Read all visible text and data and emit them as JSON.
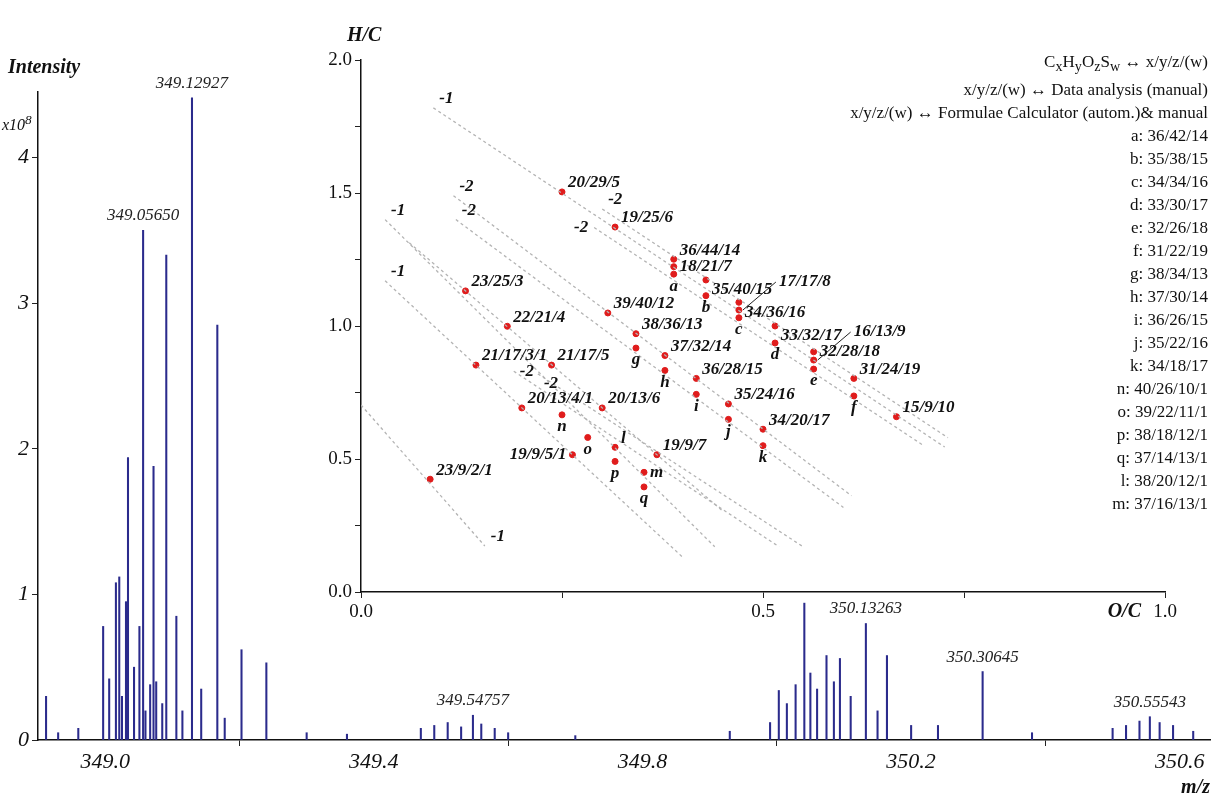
{
  "chart_data": [
    {
      "type": "bar",
      "xlabel": "m/z",
      "ylabel": "Intensity",
      "xlim": [
        348.9,
        350.645
      ],
      "xticks": [
        {
          "value": 349.0,
          "label": "349.0"
        },
        {
          "value": 349.4,
          "label": "349.4"
        },
        {
          "value": 349.8,
          "label": "349.8"
        },
        {
          "value": 350.2,
          "label": "350.2"
        },
        {
          "value": 350.6,
          "label": "350.6"
        }
      ],
      "ylim": [
        0,
        4.45
      ],
      "yticks": [
        0,
        1,
        2,
        3,
        4
      ],
      "grid": false,
      "legend": false,
      "series": [
        {
          "color": "#2b2b8c",
          "x": [
            348.912,
            348.93,
            348.96,
            348.997,
            349.006,
            349.016,
            349.021,
            349.025,
            349.031,
            349.034,
            349.043,
            349.051,
            349.0565,
            349.06,
            349.067,
            349.072,
            349.076,
            349.085,
            349.091,
            349.106,
            349.115,
            349.12927,
            349.143,
            349.167,
            349.178,
            349.203,
            349.24,
            349.3,
            349.36,
            349.47,
            349.49,
            349.51,
            349.53,
            349.54757,
            349.56,
            349.58,
            349.6,
            349.7,
            349.93,
            349.99,
            350.003,
            350.015,
            350.028,
            350.041,
            350.05,
            350.06,
            350.074,
            350.085,
            350.094,
            350.11,
            350.13263,
            350.15,
            350.164,
            350.2,
            350.24,
            350.30645,
            350.38,
            350.5,
            350.52,
            350.54,
            350.55543,
            350.57,
            350.59,
            350.62
          ],
          "values": [
            0.3,
            0.05,
            0.08,
            0.78,
            0.42,
            1.08,
            1.12,
            0.3,
            0.95,
            1.94,
            0.5,
            0.78,
            3.5,
            0.2,
            0.38,
            1.88,
            0.4,
            0.25,
            3.33,
            0.85,
            0.2,
            4.41,
            0.35,
            2.85,
            0.15,
            0.62,
            0.53,
            0.05,
            0.04,
            0.08,
            0.1,
            0.12,
            0.09,
            0.17,
            0.11,
            0.08,
            0.05,
            0.03,
            0.06,
            0.12,
            0.34,
            0.25,
            0.38,
            0.94,
            0.46,
            0.35,
            0.58,
            0.4,
            0.56,
            0.3,
            0.8,
            0.2,
            0.58,
            0.1,
            0.1,
            0.47,
            0.05,
            0.08,
            0.1,
            0.13,
            0.16,
            0.12,
            0.1,
            0.06
          ]
        }
      ],
      "annotations": [
        "x10$^{8}$",
        {
          "text": "349.05650",
          "x": 349.0565,
          "y": 3.5
        },
        {
          "text": "349.12927",
          "x": 349.12927,
          "y": 4.41
        },
        {
          "text": "349.54757",
          "x": 349.54757,
          "y": 0.17
        },
        {
          "text": "350.13263",
          "x": 350.13263,
          "y": 0.8
        },
        {
          "text": "350.30645",
          "x": 350.30645,
          "y": 0.47
        },
        {
          "text": "350.55543",
          "x": 350.55543,
          "y": 0.16
        }
      ]
    },
    {
      "type": "scatter",
      "xlabel": "O/C",
      "ylabel": "H/C",
      "xlim": [
        0,
        1
      ],
      "xticks": [
        {
          "value": 0,
          "label": "0.0"
        },
        {
          "value": 0.25,
          "label": null
        },
        {
          "value": 0.5,
          "label": "0.5"
        },
        {
          "value": 0.75,
          "label": null
        },
        {
          "value": 1,
          "label": "1.0"
        }
      ],
      "ylim": [
        0,
        2
      ],
      "yticks": [
        {
          "value": 0,
          "label": "0.0"
        },
        {
          "value": 0.25,
          "label": null
        },
        {
          "value": 0.5,
          "label": "0.5"
        },
        {
          "value": 0.75,
          "label": null
        },
        {
          "value": 1,
          "label": "1.0"
        },
        {
          "value": 1.25,
          "label": null
        },
        {
          "value": 1.5,
          "label": "1.5"
        },
        {
          "value": 1.75,
          "label": null
        },
        {
          "value": 2,
          "label": "2.0"
        }
      ],
      "grid": false,
      "legend": false,
      "marker": "circle",
      "series": [
        {
          "type": "line",
          "color": "#b4b4b4",
          "line_style": "dashed",
          "marker": "none",
          "x": [
            0.09,
            0.726
          ],
          "values": [
            1.82,
            0.545
          ]
        },
        {
          "type": "line",
          "color": "#b4b4b4",
          "line_style": "dashed",
          "marker": "none",
          "x": [
            0.3,
            0.73
          ],
          "values": [
            1.44,
            0.58
          ]
        },
        {
          "type": "line",
          "color": "#b4b4b4",
          "line_style": "dashed",
          "marker": "none",
          "x": [
            0.29,
            0.7
          ],
          "values": [
            1.37,
            0.55
          ]
        },
        {
          "type": "line",
          "color": "#b4b4b4",
          "line_style": "dashed",
          "marker": "none",
          "x": [
            0.06,
            0.45
          ],
          "values": [
            1.313,
            0.304
          ]
        },
        {
          "type": "line",
          "color": "#b4b4b4",
          "line_style": "dashed",
          "marker": "none",
          "x": [
            0.115,
            0.61
          ],
          "values": [
            1.49,
            0.362
          ]
        },
        {
          "type": "line",
          "color": "#b4b4b4",
          "line_style": "dashed",
          "marker": "none",
          "x": [
            0.118,
            0.6
          ],
          "values": [
            1.4,
            0.318
          ]
        },
        {
          "type": "line",
          "color": "#b4b4b4",
          "line_style": "dashed",
          "marker": "none",
          "x": [
            0.03,
            0.4
          ],
          "values": [
            1.17,
            0.131
          ]
        },
        {
          "type": "line",
          "color": "#b4b4b4",
          "line_style": "dashed",
          "marker": "none",
          "x": [
            0.03,
            0.44
          ],
          "values": [
            1.4,
            0.17
          ]
        },
        {
          "type": "line",
          "color": "#b4b4b4",
          "line_style": "dashed",
          "marker": "none",
          "x": [
            0.19,
            0.52
          ],
          "values": [
            0.83,
            0.17
          ]
        },
        {
          "type": "line",
          "color": "#b4b4b4",
          "line_style": "dashed",
          "marker": "none",
          "x": [
            0.22,
            0.55
          ],
          "values": [
            0.82,
            0.17
          ]
        },
        {
          "type": "line",
          "color": "#b4b4b4",
          "line_style": "dashed",
          "marker": "none",
          "x": [
            0,
            0.154
          ],
          "values": [
            0.703,
            0.173
          ]
        },
        {
          "color": "#e01c1c",
          "x": [
            0.25,
            0.316,
            0.389,
            0.389,
            0.389,
            0.429,
            0.429,
            0.13,
            0.307,
            0.182,
            0.47,
            0.47,
            0.47,
            0.342,
            0.342,
            0.378,
            0.378,
            0.237,
            0.143,
            0.417,
            0.417,
            0.2,
            0.25,
            0.3,
            0.457,
            0.457,
            0.5,
            0.5,
            0.282,
            0.316,
            0.316,
            0.263,
            0.368,
            0.352,
            0.352,
            0.086,
            0.515,
            0.515,
            0.563,
            0.563,
            0.563,
            0.613,
            0.613,
            0.666
          ],
          "values": [
            1.504,
            1.372,
            1.251,
            1.223,
            1.195,
            1.173,
            1.114,
            1.132,
            1.049,
            0.999,
            1.089,
            1.06,
            1.031,
            0.971,
            0.917,
            0.889,
            0.833,
            0.853,
            0.853,
            0.803,
            0.743,
            0.692,
            0.666,
            0.692,
            0.707,
            0.649,
            0.612,
            0.55,
            0.581,
            0.544,
            0.491,
            0.516,
            0.516,
            0.45,
            0.395,
            0.424,
            1.0,
            0.936,
            0.903,
            0.872,
            0.838,
            0.803,
            0.737,
            0.659
          ]
        }
      ],
      "annotations": [
        "C$_{x}$H$_{y}$O$_{z}$S$_{w}$ ↔ x/y/z/(w)",
        "x/y/z/(w) ↔ Data analysis (manual)",
        "x/y/z/(w) ↔ Formulae Calculator (autom.)& manual",
        "a: 36/42/14",
        "b: 35/38/15",
        "c: 34/34/16",
        "d: 33/30/17",
        "e: 32/26/18",
        "f: 31/22/19",
        "g: 38/34/13",
        "h: 37/30/14",
        "i: 36/26/15",
        "j: 35/22/16",
        "k: 34/18/17",
        "n: 40/26/10/1",
        "o: 39/22/11/1",
        "p: 38/18/12/1",
        "q: 37/14/13/1",
        "l: 38/20/12/1",
        "m: 37/16/13/1",
        {
          "text": "20/29/5",
          "x": 0.25,
          "y": 1.504
        },
        {
          "text": "19/25/6",
          "x": 0.316,
          "y": 1.372
        },
        {
          "text": "36/44/14",
          "x": 0.389,
          "y": 1.251
        },
        {
          "text": "18/21/7",
          "x": 0.389,
          "y": 1.223
        },
        {
          "text": "a",
          "x": 0.389,
          "y": 1.195
        },
        {
          "text": "35/40/15",
          "x": 0.429,
          "y": 1.173
        },
        {
          "text": "b",
          "x": 0.429,
          "y": 1.114
        },
        {
          "text": "23/25/3",
          "x": 0.13,
          "y": 1.132
        },
        {
          "text": "39/40/12",
          "x": 0.307,
          "y": 1.049
        },
        {
          "text": "22/21/4",
          "x": 0.182,
          "y": 0.999
        },
        {
          "text": "34/36/16",
          "x": 0.47,
          "y": 1.089
        },
        {
          "text": "17/17/8",
          "x": 0.47,
          "y": 1.06
        },
        {
          "text": "c",
          "x": 0.47,
          "y": 1.031
        },
        {
          "text": "38/36/13",
          "x": 0.342,
          "y": 0.971
        },
        {
          "text": "g",
          "x": 0.342,
          "y": 0.917
        },
        {
          "text": "37/32/14",
          "x": 0.378,
          "y": 0.889
        },
        {
          "text": "h",
          "x": 0.378,
          "y": 0.833
        },
        {
          "text": "21/17/5",
          "x": 0.237,
          "y": 0.853
        },
        {
          "text": "21/17/3/1",
          "x": 0.143,
          "y": 0.853
        },
        {
          "text": "36/28/15",
          "x": 0.417,
          "y": 0.803
        },
        {
          "text": "i",
          "x": 0.417,
          "y": 0.743
        },
        {
          "text": "20/13/4/1",
          "x": 0.2,
          "y": 0.692
        },
        {
          "text": "n",
          "x": 0.25,
          "y": 0.666
        },
        {
          "text": "20/13/6",
          "x": 0.3,
          "y": 0.692
        },
        {
          "text": "35/24/16",
          "x": 0.457,
          "y": 0.707
        },
        {
          "text": "j",
          "x": 0.457,
          "y": 0.649
        },
        {
          "text": "34/20/17",
          "x": 0.5,
          "y": 0.612
        },
        {
          "text": "k",
          "x": 0.5,
          "y": 0.55
        },
        {
          "text": "33/32/17",
          "x": 0.515,
          "y": 1.0
        },
        {
          "text": "d",
          "x": 0.515,
          "y": 0.936
        },
        {
          "text": "32/28/18",
          "x": 0.563,
          "y": 0.903
        },
        {
          "text": "16/13/9",
          "x": 0.563,
          "y": 0.872
        },
        {
          "text": "e",
          "x": 0.563,
          "y": 0.838
        },
        {
          "text": "31/24/19",
          "x": 0.613,
          "y": 0.803
        },
        {
          "text": "f",
          "x": 0.613,
          "y": 0.737
        },
        {
          "text": "15/9/10",
          "x": 0.666,
          "y": 0.659
        },
        {
          "text": "o",
          "x": 0.282,
          "y": 0.581
        },
        {
          "text": "l",
          "x": 0.316,
          "y": 0.544
        },
        {
          "text": "p",
          "x": 0.316,
          "y": 0.491
        },
        {
          "text": "19/9/5/1",
          "x": 0.263,
          "y": 0.516
        },
        {
          "text": "19/9/7",
          "x": 0.368,
          "y": 0.516
        },
        {
          "text": "m",
          "x": 0.352,
          "y": 0.45
        },
        {
          "text": "q",
          "x": 0.352,
          "y": 0.395
        },
        {
          "text": "23/9/2/1",
          "x": 0.086,
          "y": 0.424
        },
        {
          "text": "-1",
          "x": 0.09,
          "y": 1.82
        },
        {
          "text": "-2",
          "x": 0.115,
          "y": 1.49
        },
        {
          "text": "-1",
          "x": 0.03,
          "y": 1.4
        },
        {
          "text": "-2",
          "x": 0.118,
          "y": 1.4
        },
        {
          "text": "-2",
          "x": 0.3,
          "y": 1.44
        },
        {
          "text": "-2",
          "x": 0.29,
          "y": 1.37
        },
        {
          "text": "-1",
          "x": 0.03,
          "y": 1.17
        },
        {
          "text": "-2",
          "x": 0.19,
          "y": 0.83
        },
        {
          "text": "-2",
          "x": 0.22,
          "y": 0.82
        },
        {
          "text": "-1",
          "x": 0.154,
          "y": 0.173
        }
      ]
    }
  ]
}
